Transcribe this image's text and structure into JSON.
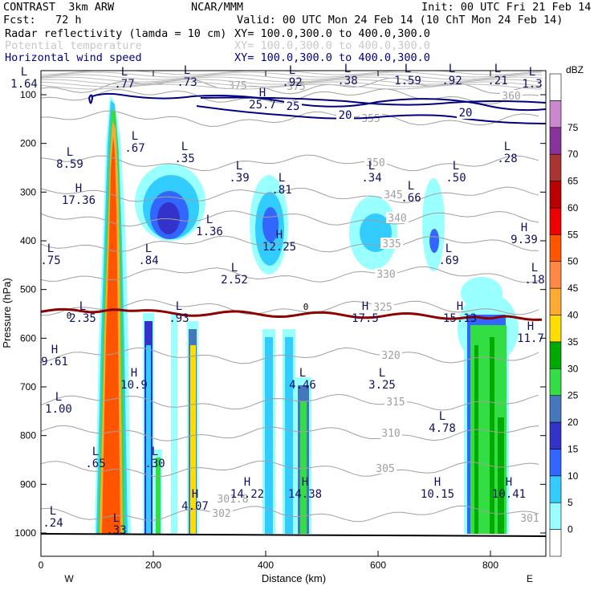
{
  "header": {
    "model": "CONTRAST  3km ARW",
    "center": "NCAR/MMM",
    "init": "Init: 00 UTC Fri 21 Feb 14",
    "fcst": "Fcst:   72 h",
    "valid": "Valid: 00 UTC Mon 24 Feb 14 (10 ChT Mon 24 Feb 14)",
    "field1": "Radar reflectivity (lamda = 10 cm)",
    "field1_xy": "XY= 100.0,300.0 to 400.0,300.0",
    "field2": "Potential temperature",
    "field2_xy": "XY= 100.0,300.0 to 400.0,300.0",
    "field3": "Horizontal wind speed",
    "field3_xy": "XY= 100.0,300.0 to 400.0,300.0"
  },
  "colors": {
    "field1": "#000000",
    "field2": "#c8c8c8",
    "field3": "#000080",
    "theta": "#a0a0a0",
    "wind": "#000080",
    "freezing": "#8b0000",
    "hl_label": "#101060"
  },
  "chart_data": {
    "type": "heatmap",
    "xlabel": "Distance (km)",
    "ylabel": "Pressure (hPa)",
    "xlim": [
      0,
      900
    ],
    "ylim": [
      1000,
      55
    ],
    "xticks": [
      "0",
      "200",
      "400",
      "600",
      "800"
    ],
    "yticks": [
      "100",
      "200",
      "300",
      "400",
      "500",
      "600",
      "700",
      "800",
      "900",
      "1000"
    ],
    "x_end_labels": {
      "left": "W",
      "right": "E"
    },
    "colorbar": {
      "unit": "dBZ",
      "levels": [
        "0",
        "5",
        "10",
        "15",
        "20",
        "25",
        "30",
        "35",
        "40",
        "45",
        "50",
        "55",
        "60",
        "65",
        "70",
        "75"
      ],
      "colors": [
        "#ffffff",
        "#99ffff",
        "#33ccff",
        "#3366ff",
        "#3333cc",
        "#4477bb",
        "#33dd44",
        "#00aa00",
        "#ffdd00",
        "#ffaa33",
        "#ff8844",
        "#ff5500",
        "#ee0000",
        "#bb0000",
        "#aa3333",
        "#883399",
        "#cc88cc",
        "#ffffff"
      ]
    },
    "theta_labels": [
      "375",
      "375",
      "360",
      "355",
      "350",
      "345",
      "340",
      "335",
      "330",
      "325",
      "320",
      "315",
      "310",
      "305",
      "302",
      "301.8",
      "301"
    ],
    "wind_labels": [
      "25",
      "20",
      "20"
    ],
    "freezing_label": "0",
    "hl_labels": [
      {
        "t": "L",
        "v": "1.64"
      },
      {
        "t": "L",
        "v": ".77"
      },
      {
        "t": "L",
        "v": ".73"
      },
      {
        "t": "L",
        "v": ".92"
      },
      {
        "t": "L",
        "v": ".38"
      },
      {
        "t": "L",
        "v": "1.59"
      },
      {
        "t": "L",
        "v": ".92"
      },
      {
        "t": "L",
        "v": ".21"
      },
      {
        "t": "L",
        "v": "1.3"
      },
      {
        "t": "H",
        "v": "25.7"
      },
      {
        "t": "L",
        "v": ".67"
      },
      {
        "t": "L",
        "v": "8.59"
      },
      {
        "t": "L",
        "v": ".35"
      },
      {
        "t": "L",
        "v": ".28"
      },
      {
        "t": "H",
        "v": "17.36"
      },
      {
        "t": "L",
        "v": ".39"
      },
      {
        "t": "L",
        "v": ".81"
      },
      {
        "t": "L",
        "v": ".34"
      },
      {
        "t": "L",
        "v": ".50"
      },
      {
        "t": "L",
        "v": ".66"
      },
      {
        "t": "L",
        "v": "1.36"
      },
      {
        "t": "H",
        "v": "12.25"
      },
      {
        "t": "H",
        "v": "9.39"
      },
      {
        "t": "L",
        "v": ".75"
      },
      {
        "t": "L",
        "v": ".84"
      },
      {
        "t": "L",
        "v": "2.52"
      },
      {
        "t": "L",
        "v": ".69"
      },
      {
        "t": "L",
        "v": ".18"
      },
      {
        "t": "L",
        "v": "2.35"
      },
      {
        "t": "L",
        "v": ".93"
      },
      {
        "t": "H",
        "v": "17.5"
      },
      {
        "t": "H",
        "v": "15.13"
      },
      {
        "t": "H",
        "v": "11.7"
      },
      {
        "t": "H",
        "v": "9.61"
      },
      {
        "t": "H",
        "v": "10.9"
      },
      {
        "t": "L",
        "v": "4.46"
      },
      {
        "t": "L",
        "v": "3.25"
      },
      {
        "t": "L",
        "v": "1.00"
      },
      {
        "t": "L",
        "v": "4.78"
      },
      {
        "t": "L",
        "v": ".65"
      },
      {
        "t": "L",
        "v": ".30"
      },
      {
        "t": "H",
        "v": "4.07"
      },
      {
        "t": "H",
        "v": "14.22"
      },
      {
        "t": "H",
        "v": "14.38"
      },
      {
        "t": "H",
        "v": "10.15"
      },
      {
        "t": "H",
        "v": "10.41"
      },
      {
        "t": "L",
        "v": ".24"
      },
      {
        "t": "L",
        "v": ".33"
      }
    ],
    "grid": false,
    "legend": "right"
  }
}
